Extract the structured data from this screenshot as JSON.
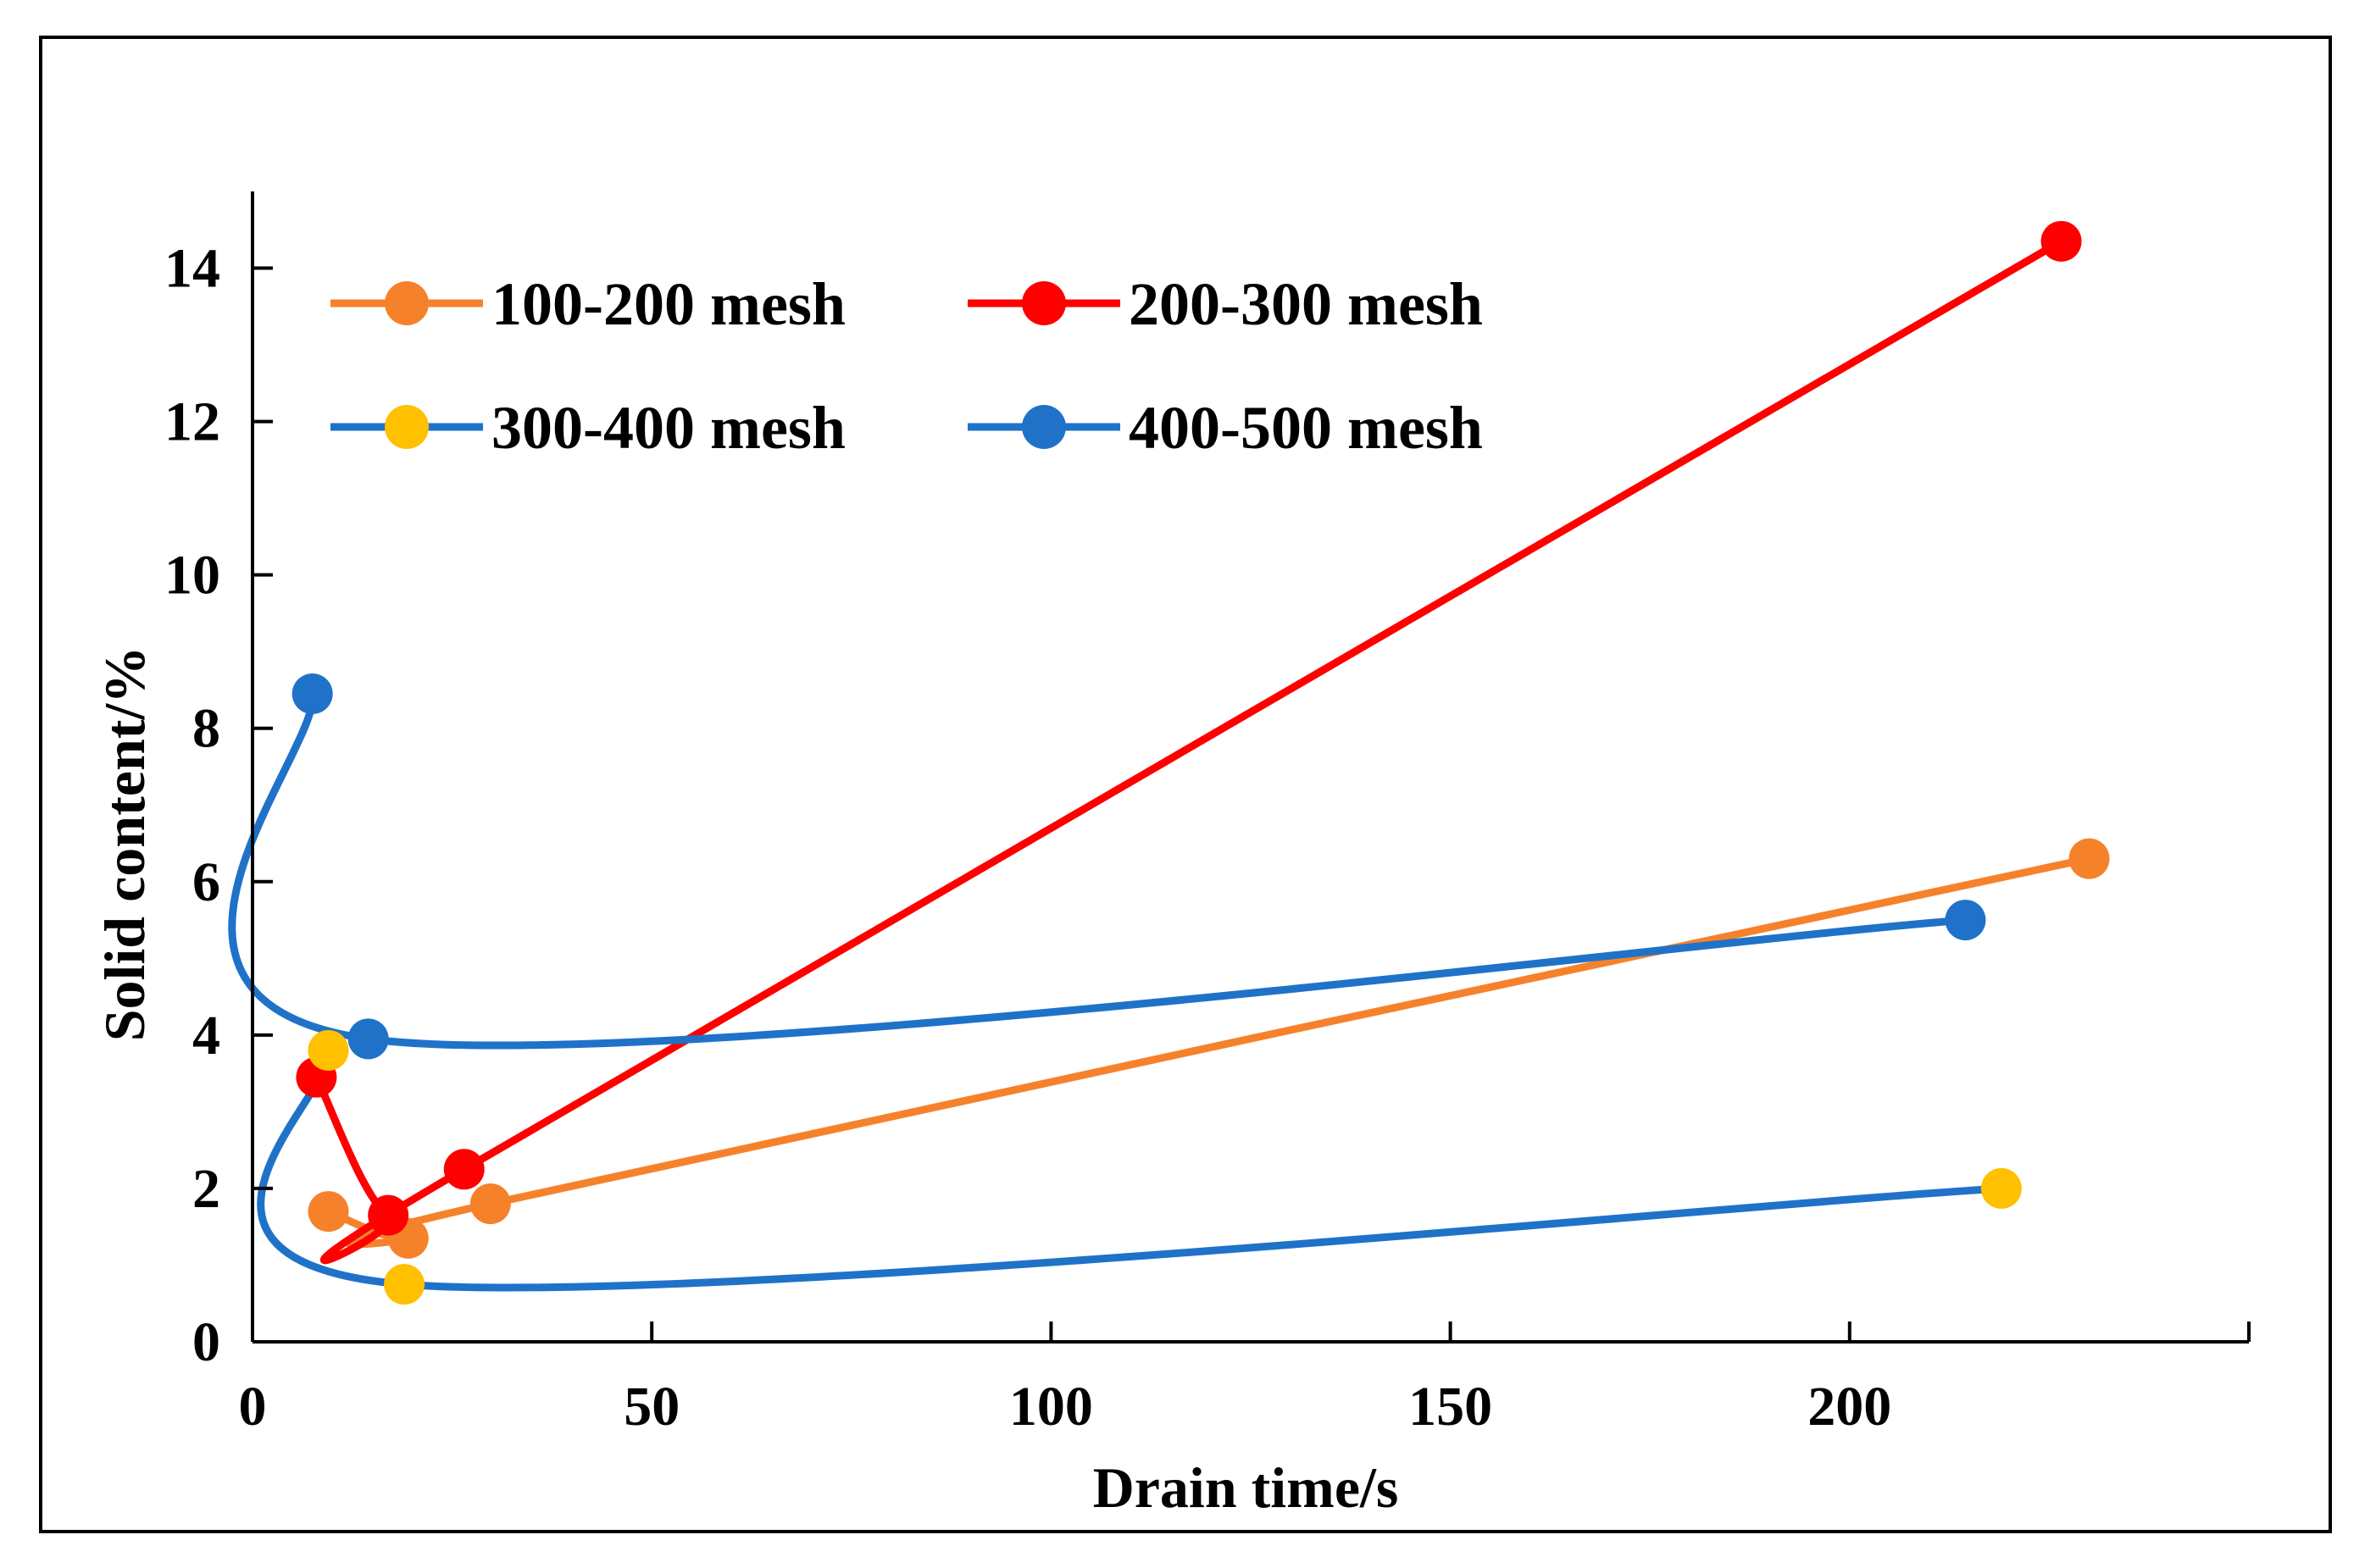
{
  "chart_data": {
    "type": "line",
    "title": "",
    "xlabel": "Drain time/s",
    "ylabel": "Solid content/%",
    "xlim": [
      0,
      250
    ],
    "ylim": [
      0,
      15
    ],
    "xticks": [
      "0",
      "50",
      "100",
      "150",
      "200"
    ],
    "yticks": [
      "0",
      "2",
      "4",
      "6",
      "8",
      "10",
      "12",
      "14"
    ],
    "grid": false,
    "legend_position": "top-left",
    "series": [
      {
        "name": "100-200 mesh",
        "marker_color": "#F5822B",
        "line_color": "#F5822B",
        "x": [
          9.5,
          19.5,
          29.8,
          230
        ],
        "y": [
          1.7,
          1.35,
          1.8,
          6.3
        ]
      },
      {
        "name": "200-300 mesh",
        "marker_color": "#FF0000",
        "line_color": "#FF0000",
        "x": [
          8,
          17,
          26.5,
          226.5
        ],
        "y": [
          3.45,
          1.65,
          2.25,
          14.35
        ]
      },
      {
        "name": "300-400 mesh",
        "marker_color": "#FFC000",
        "line_color": "#1F72C8",
        "x": [
          9.5,
          19,
          219
        ],
        "y": [
          3.8,
          0.75,
          2.0
        ]
      },
      {
        "name": "400-500 mesh",
        "marker_color": "#1F72C8",
        "line_color": "#1F72C8",
        "x": [
          7.5,
          14.5,
          214.5
        ],
        "y": [
          8.45,
          3.95,
          5.5
        ]
      }
    ]
  }
}
